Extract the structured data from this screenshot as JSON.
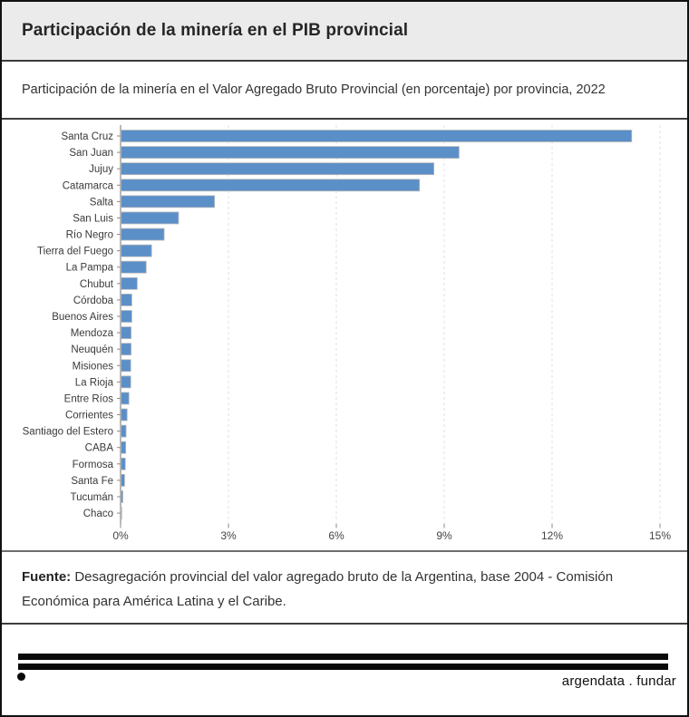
{
  "header": {
    "title": "Participación de la minería en el PIB provincial"
  },
  "subtitle": "Participación de la minería en el Valor Agregado Bruto Provincial (en porcentaje) por provincia, 2022",
  "chart_data": {
    "type": "bar",
    "orientation": "horizontal",
    "title": "Participación de la minería en el Valor Agregado Bruto Provincial (en porcentaje) por provincia, 2022",
    "categories": [
      "Santa Cruz",
      "San Juan",
      "Jujuy",
      "Catamarca",
      "Salta",
      "San Luis",
      "Río Negro",
      "Tierra del Fuego",
      "La Pampa",
      "Chubut",
      "Córdoba",
      "Buenos Aires",
      "Mendoza",
      "Neuquén",
      "Misiones",
      "La Rioja",
      "Entre Ríos",
      "Corrientes",
      "Santiago del Estero",
      "CABA",
      "Formosa",
      "Santa Fe",
      "Tucumán",
      "Chaco"
    ],
    "values": [
      14.2,
      9.4,
      8.7,
      8.3,
      2.6,
      1.6,
      1.2,
      0.85,
      0.7,
      0.45,
      0.3,
      0.3,
      0.28,
      0.28,
      0.27,
      0.27,
      0.22,
      0.17,
      0.14,
      0.13,
      0.12,
      0.1,
      0.05,
      0.02
    ],
    "xlabel": "",
    "ylabel": "",
    "xlim": [
      0,
      15
    ],
    "x_ticks": [
      0,
      3,
      6,
      9,
      12,
      15
    ],
    "x_tick_labels": [
      "0%",
      "3%",
      "6%",
      "9%",
      "12%",
      "15%"
    ],
    "grid": "vertical-dashed",
    "legend": "none",
    "bar_color": "#5b8fc8",
    "bar_stroke_color": "#b9b9b9",
    "grid_color": "#e4e4ee",
    "axis_color": "#8a8a8a",
    "label_color": "#3a3a3a",
    "tick_label_color": "#444444"
  },
  "source": {
    "label": "Fuente:",
    "text": "Desagregación provincial del valor agregado bruto de la Argentina, base 2004 - Comisión Económica para América Latina y el Caribe."
  },
  "footer": {
    "brand": "argendata . fundar"
  }
}
